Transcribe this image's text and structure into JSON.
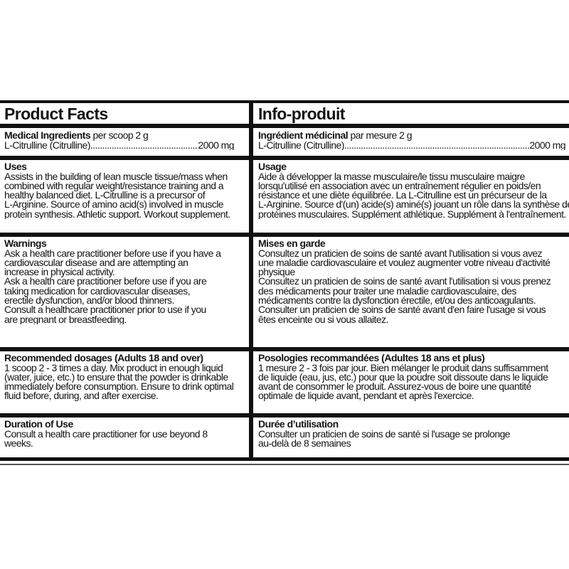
{
  "en": {
    "title": "Product Facts",
    "ingredients": {
      "heading": "Medical Ingredients",
      "per": " per scoop 2 g",
      "name": "L-Citrulline (Citrulline)",
      "amount": "2000 mg"
    },
    "uses": {
      "heading": "Uses",
      "lines": [
        "Assists in the building of lean muscle tissue/mass when",
        "combined with regular weight/resistance training and a",
        "healthy balanced diet. L-Citrulline is a precursor of",
        "L-Arginine. Source of amino acid(s) involved in muscle",
        "protein synthesis. Athletic support. Workout supplement."
      ]
    },
    "warnings": {
      "heading": "Warnings",
      "lines": [
        "Ask a health care practitioner before use if you have a",
        "cardiovascular disease and are attempting an",
        "increase in physical activity.",
        "Ask a health care practitioner before use if you are",
        "taking medication for cardiovascular diseases,",
        "erectile dysfunction, and/or blood thinners.",
        "Consult a healthcare practitioner prior to use if you",
        "are pregnant or breastfeeding."
      ]
    },
    "dosage": {
      "heading": "Recommended dosages (Adults 18 and over)",
      "lines": [
        "1 scoop 2 - 3 times a day. Mix product in enough liquid",
        "(water, juice, etc.) to ensure that the powder is drinkable",
        "immediately before consumption. Ensure to drink optimal",
        "fluid before, during, and after exercise."
      ]
    },
    "duration": {
      "heading": "Duration of Use",
      "lines": [
        "Consult a health care practitioner for use beyond 8",
        "weeks."
      ]
    }
  },
  "fr": {
    "title": "Info-produit",
    "ingredients": {
      "heading": "Ingrédient médicinal",
      "per": " par mesure 2 g",
      "name": "L-Citrulline (Citrulline)",
      "amount": "2000 mg"
    },
    "uses": {
      "heading": "Usage",
      "lines": [
        "Aide à développer la masse musculaire/le tissu musculaire maigre",
        "lorsqu'utilisé en association avec un entraînement régulier en poids/en",
        "résistance et une diète équilibrée. La L-Citrulline est un précurseur de la",
        "L-Arginine. Source d'(un) acide(s) aminé(s) jouant un rôle dans la synthèse des",
        "protéines musculaires. Supplément athlétique. Supplément à l'entraînement."
      ]
    },
    "warnings": {
      "heading": "Mises en garde",
      "lines": [
        "Consultez un praticien de soins de santé avant l'utilisation si vous avez",
        "une maladie cardiovasculaire et voulez augmenter votre niveau d'activité",
        "physique",
        "Consultez un praticien de soins de santé avant l'utilisation si vous prenez",
        "des médicaments pour traiter une maladie cardiovasculaire, des",
        "médicaments contre la dysfonction érectile, et/ou des anticoagulants.",
        "Consulter un praticien de soins de santé avant d'en faire l'usage si vous",
        "êtes enceinte ou si vous allaitez."
      ]
    },
    "dosage": {
      "heading": "Posologies recommandées (Adultes 18 ans et plus)",
      "lines": [
        "1 mesure 2 - 3 fois par jour. Bien mélanger le produit dans suffisamment",
        "de liquide (eau, jus, etc.) pour que la poudre soit dissoute dans le liquide",
        "avant de consommer le produit. Assurez-vous de boire une quantité",
        "optimale de liquide avant, pendant et après l'exercice."
      ]
    },
    "duration": {
      "heading": "Durée d’utilisation",
      "lines": [
        "Consulter un praticien de soins de santé si l'usage se prolonge",
        "au-delà de 8 semaines"
      ]
    }
  }
}
